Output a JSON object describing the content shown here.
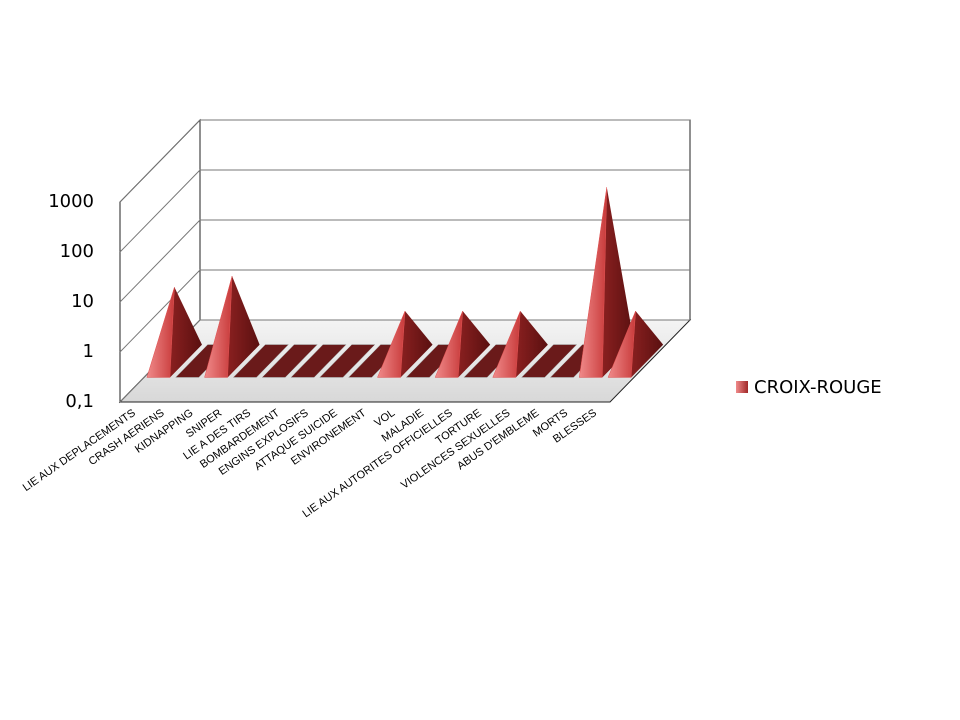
{
  "chart_data": {
    "type": "pyramid3d",
    "categories": [
      "LIE AUX DEPLACEMENTS",
      "CRASH AERIENS",
      "KIDNAPPING",
      "SNIPER",
      "LIE A DES TIRS",
      "BOMBARDEMENT",
      "ENGINS EXPLOSIFS",
      "ATTAQUE SUICIDE",
      "ENVIRONEMENT",
      "VOL",
      "MALADIE",
      "LIE AUX AUTORITES OFFICIELLES",
      "TORTURE",
      "VIOLENCES SEXUELLES",
      "ABUS D'EMBLEME",
      "MORTS",
      "BLESSES"
    ],
    "series": [
      {
        "name": "CROIX-ROUGE",
        "color": "#e05050",
        "values": [
          3,
          0,
          5,
          0,
          0,
          0,
          0,
          0,
          1,
          0,
          1,
          0,
          1,
          0,
          0,
          300,
          1
        ]
      }
    ],
    "ylim": [
      0.1,
      1000
    ],
    "yticks": [
      {
        "value": 0.1,
        "label": "0,1"
      },
      1,
      10,
      100,
      1000
    ],
    "log_scale": true,
    "grid": true,
    "legend": "right"
  }
}
